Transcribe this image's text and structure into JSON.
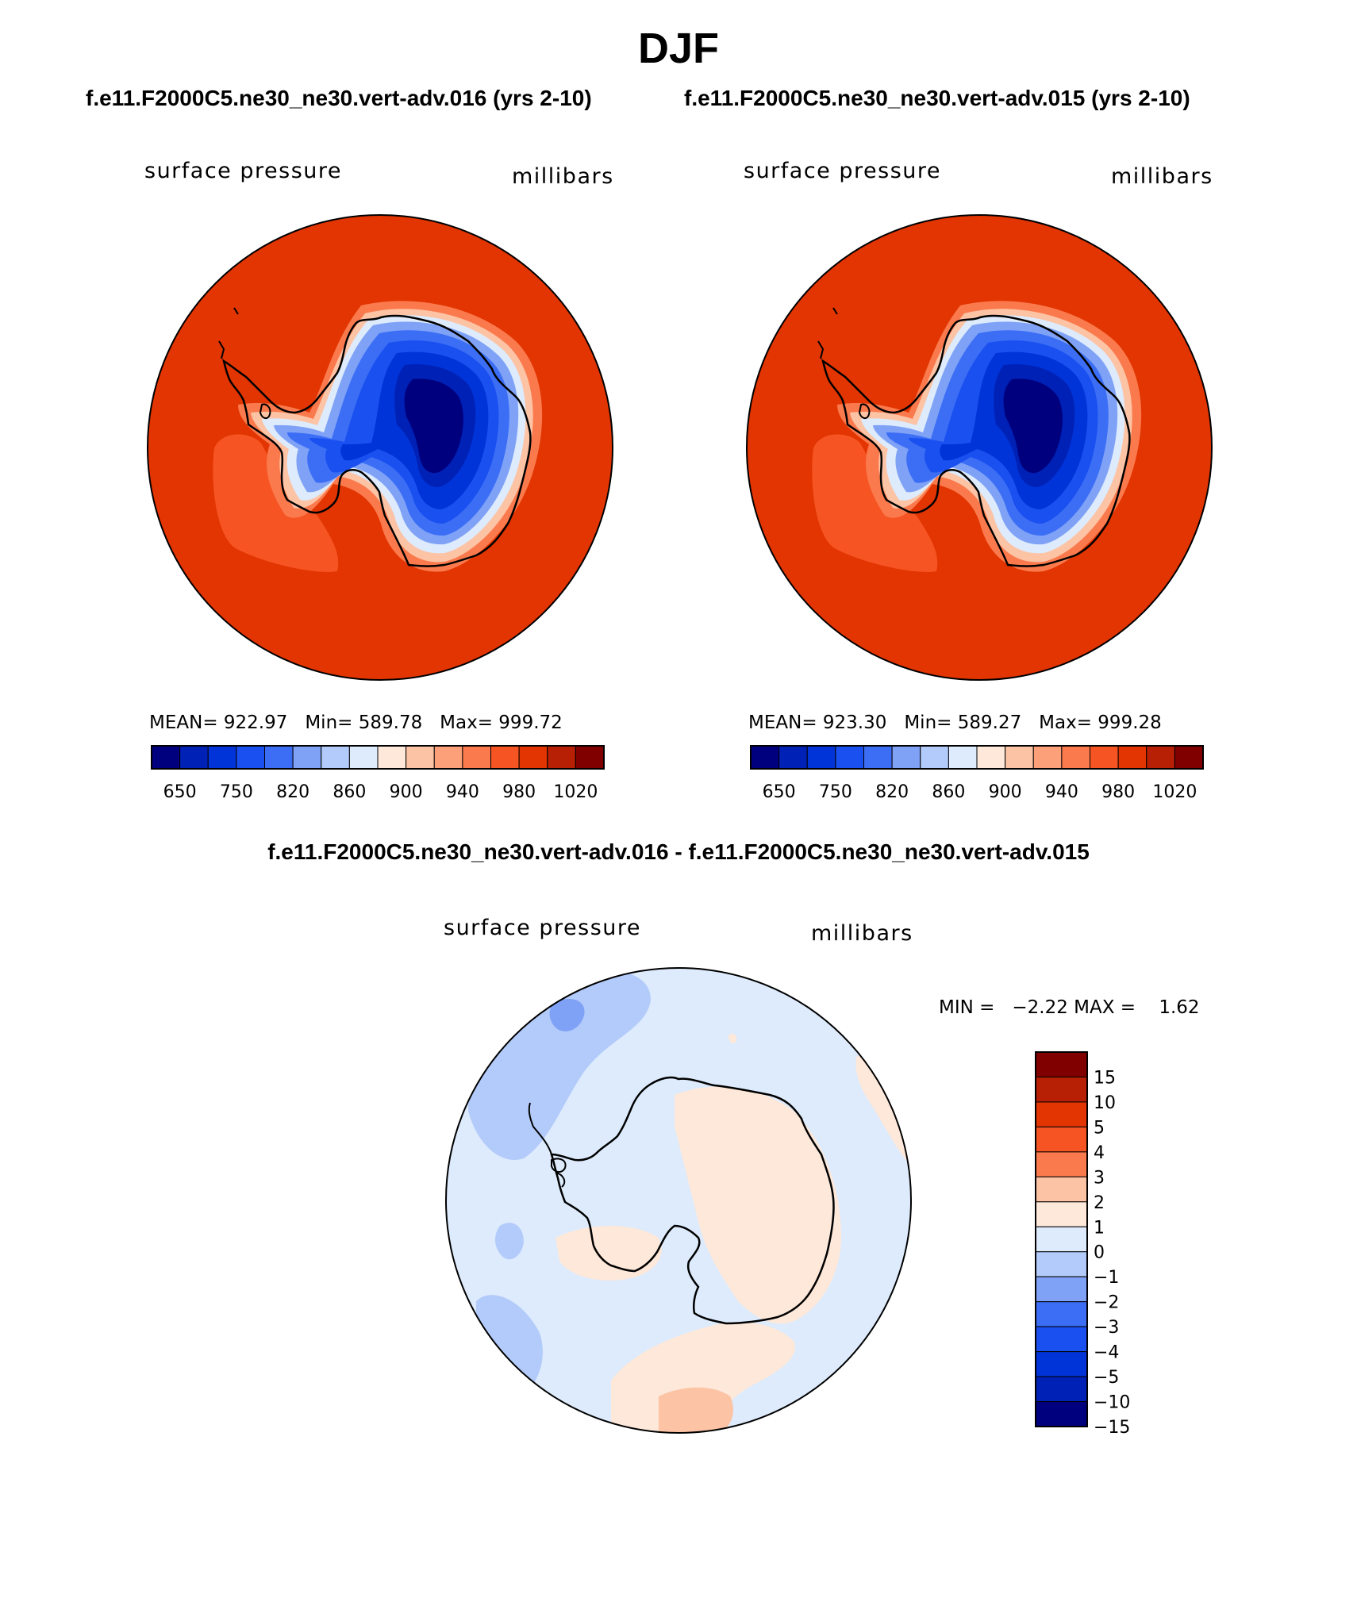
{
  "title": "DJF",
  "panels": [
    {
      "case_title": "f.e11.F2000C5.ne30_ne30.vert-adv.016 (yrs 2-10)",
      "variable": "surface pressure",
      "units": "millibars",
      "stats": {
        "mean_label": "MEAN=",
        "mean": "922.97",
        "min_label": "Min=",
        "min": "589.78",
        "max_label": "Max=",
        "max": "999.72"
      }
    },
    {
      "case_title": "f.e11.F2000C5.ne30_ne30.vert-adv.015 (yrs 2-10)",
      "variable": "surface pressure",
      "units": "millibars",
      "stats": {
        "mean_label": "MEAN=",
        "mean": "923.30",
        "min_label": "Min=",
        "min": "589.27",
        "max_label": "Max=",
        "max": "999.28"
      }
    }
  ],
  "abs_colorbar": {
    "colors": [
      "#00007f",
      "#0021b5",
      "#0034d8",
      "#1a4ff0",
      "#3b6ef5",
      "#7fa2f7",
      "#b3cbfa",
      "#ddebfc",
      "#fde8da",
      "#fcc3a5",
      "#fca07a",
      "#fb7a4d",
      "#f65423",
      "#e23501",
      "#b82005",
      "#800000"
    ],
    "tick_labels": [
      "650",
      "750",
      "820",
      "860",
      "900",
      "940",
      "980",
      "1020"
    ],
    "tick_boundaries": [
      1,
      3,
      5,
      7,
      9,
      11,
      13,
      15
    ]
  },
  "diff": {
    "title": "f.e11.F2000C5.ne30_ne30.vert-adv.016 - f.e11.F2000C5.ne30_ne30.vert-adv.015",
    "variable": "surface pressure",
    "units": "millibars",
    "min_label": "MIN =",
    "min": "−2.22",
    "max_label": "MAX =",
    "max": "1.62",
    "colorbar": {
      "colors_top_to_bottom": [
        "#800000",
        "#b82005",
        "#e23501",
        "#f65423",
        "#fb7a4d",
        "#fcc3a5",
        "#fde8da",
        "#ddebfc",
        "#b3cbfa",
        "#7fa2f7",
        "#3b6ef5",
        "#1a4ff0",
        "#0034d8",
        "#0021b5",
        "#00007f"
      ],
      "tick_labels": [
        "15",
        "10",
        "5",
        "4",
        "3",
        "2",
        "1",
        "0",
        "−1",
        "−2",
        "−3",
        "−4",
        "−5",
        "−10",
        "−15"
      ]
    }
  },
  "colors": {
    "land_outline": "#000000",
    "ocean_high": "#e23501",
    "ice_low": "#00007f"
  }
}
